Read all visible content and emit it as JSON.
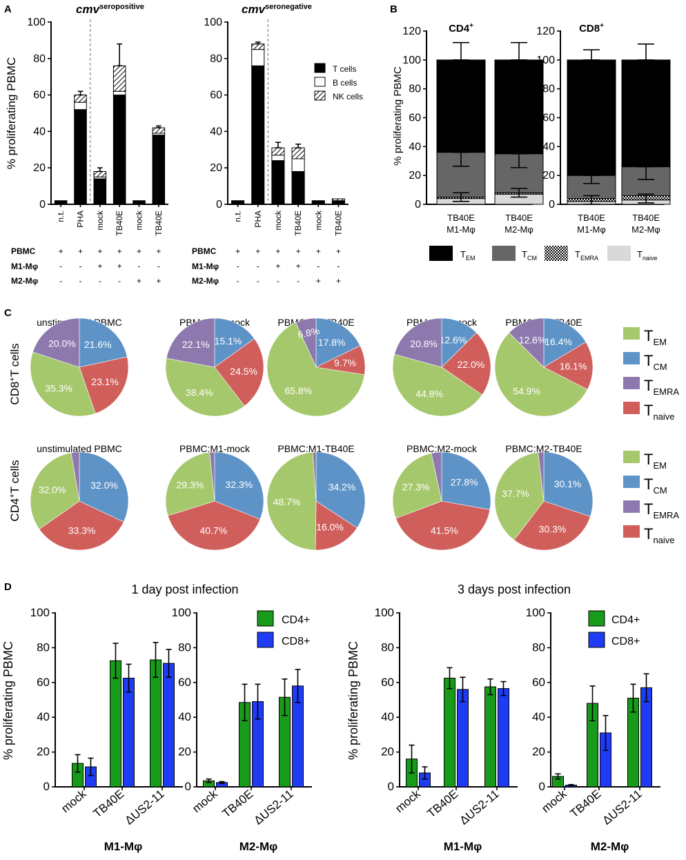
{
  "chart_data": [
    {
      "id": "A_pos",
      "panel": "A",
      "type": "bar",
      "stacked": true,
      "title": "cmv seropositive",
      "ylabel": "% proliferating PBMC",
      "ylim": [
        0,
        100
      ],
      "yticks": [
        0,
        20,
        40,
        60,
        80,
        100
      ],
      "categories": [
        "n.t.",
        "PHA",
        "mock",
        "TB40E",
        "mock",
        "TB40E"
      ],
      "series": [
        {
          "name": "T cells",
          "values": [
            2,
            52,
            14,
            60,
            2,
            38
          ]
        },
        {
          "name": "B cells",
          "values": [
            0,
            4,
            1,
            2,
            0,
            1
          ]
        },
        {
          "name": "NK cells",
          "values": [
            0,
            4,
            3,
            14,
            0,
            3
          ]
        }
      ],
      "errors": [
        0,
        2,
        2,
        12,
        0,
        1
      ]
    },
    {
      "id": "A_neg",
      "panel": "A",
      "type": "bar",
      "stacked": true,
      "title": "cmv seronegative",
      "ylabel": "",
      "ylim": [
        0,
        100
      ],
      "yticks": [
        0,
        20,
        40,
        60,
        80,
        100
      ],
      "categories": [
        "n.t.",
        "PHA",
        "mock",
        "TB40E",
        "mock",
        "TB40E"
      ],
      "series": [
        {
          "name": "T cells",
          "values": [
            2,
            76,
            24,
            18,
            2,
            2
          ]
        },
        {
          "name": "B cells",
          "values": [
            0,
            9,
            3,
            7,
            0,
            0
          ]
        },
        {
          "name": "NK cells",
          "values": [
            0,
            3,
            4,
            6,
            0,
            1
          ]
        }
      ],
      "errors": [
        0,
        1,
        3,
        2,
        0,
        0
      ],
      "legend": [
        "T cells",
        "B cells",
        "NK cells"
      ]
    },
    {
      "id": "B_cd4",
      "panel": "B",
      "type": "bar",
      "stacked": true,
      "title": "CD4+",
      "ylabel": "% proliferating PBMC",
      "ylim": [
        0,
        120
      ],
      "yticks": [
        0,
        20,
        40,
        60,
        80,
        100,
        120
      ],
      "categories": [
        "TB40E M1-Mφ",
        "TB40E M2-Mφ"
      ],
      "series": [
        {
          "name": "T naive",
          "values": [
            4,
            7
          ]
        },
        {
          "name": "T EMRA",
          "values": [
            1,
            1
          ]
        },
        {
          "name": "T CM",
          "values": [
            31,
            27
          ]
        },
        {
          "name": "T EM",
          "values": [
            64,
            65
          ]
        }
      ],
      "errors": [
        12,
        12
      ]
    },
    {
      "id": "B_cd8",
      "panel": "B",
      "type": "bar",
      "stacked": true,
      "title": "CD8+",
      "ylabel": "",
      "ylim": [
        0,
        120
      ],
      "yticks": [
        0,
        20,
        40,
        60,
        80,
        100,
        120
      ],
      "categories": [
        "TB40E M1-Mφ",
        "TB40E M2-Mφ"
      ],
      "series": [
        {
          "name": "T naive",
          "values": [
            2,
            3
          ]
        },
        {
          "name": "T EMRA",
          "values": [
            2,
            3
          ]
        },
        {
          "name": "T CM",
          "values": [
            16,
            20
          ]
        },
        {
          "name": "T EM",
          "values": [
            80,
            74
          ]
        }
      ],
      "errors": [
        7,
        11
      ]
    },
    {
      "id": "C_cd8",
      "panel": "C",
      "type": "pie",
      "row_label": "CD8+T cells",
      "slice_order": [
        "T CM",
        "T naive",
        "T EM",
        "T EMRA"
      ],
      "pies": [
        {
          "title": "unstimulated PBMC",
          "values": [
            21.6,
            23.1,
            35.3,
            20.0
          ],
          "labels": [
            "21.6%",
            "23.1%",
            "35.3%",
            "20.0%"
          ]
        },
        {
          "title": "PBMC:M1-mock",
          "values": [
            15.1,
            24.5,
            38.4,
            22.1
          ],
          "labels": [
            "15.1%",
            "24.5%",
            "38.4%",
            "22.1%"
          ]
        },
        {
          "title": "PBMC:M1-TB40E",
          "values": [
            17.8,
            9.7,
            65.8,
            6.8
          ],
          "labels": [
            "17.8%",
            "9.7%",
            "65.8%",
            "6.8%"
          ]
        },
        {
          "title": "PBMC:M2-mock",
          "values": [
            12.6,
            22.0,
            44.8,
            20.8
          ],
          "labels": [
            "12.6%",
            "22.0%",
            "44.8%",
            "20.8%"
          ]
        },
        {
          "title": "PBMC:M2-TB40E",
          "values": [
            16.4,
            16.1,
            54.9,
            12.6
          ],
          "labels": [
            "16.4%",
            "16.1%",
            "54.9%",
            "12.6%"
          ]
        }
      ]
    },
    {
      "id": "C_cd4",
      "panel": "C",
      "type": "pie",
      "row_label": "CD4+T cells",
      "slice_order": [
        "T CM",
        "T naive",
        "T EM",
        "T EMRA"
      ],
      "pies": [
        {
          "title": "unstimulated PBMC",
          "values": [
            32.0,
            33.3,
            32.0,
            2.7
          ],
          "labels": [
            "32.0%",
            "33.3%",
            "32.0%",
            ""
          ]
        },
        {
          "title": "PBMC:M1-mock",
          "values": [
            32.3,
            40.7,
            29.3,
            1.7
          ],
          "labels": [
            "32.3%",
            "40.7%",
            "29.3%",
            ""
          ]
        },
        {
          "title": "PBMC:M1-TB40E",
          "values": [
            34.2,
            16.0,
            48.7,
            1.1
          ],
          "labels": [
            "34.2%",
            "16.0%",
            "48.7%",
            ""
          ]
        },
        {
          "title": "PBMC:M2-mock",
          "values": [
            27.8,
            41.5,
            27.3,
            3.4
          ],
          "labels": [
            "27.8%",
            "41.5%",
            "27.3%",
            ""
          ]
        },
        {
          "title": "PBMC:M2-TB40E",
          "values": [
            30.1,
            30.3,
            37.7,
            1.9
          ],
          "labels": [
            "30.1%",
            "30.3%",
            "37.7%",
            ""
          ]
        }
      ]
    },
    {
      "id": "D_1d_M1",
      "panel": "D",
      "type": "bar",
      "ylabel": "% proliferating PBMC",
      "xlabel": "M1-Mφ",
      "ylim": [
        0,
        100
      ],
      "yticks": [
        0,
        20,
        40,
        60,
        80,
        100
      ],
      "categories": [
        "mock",
        "TB40E",
        "ΔUS2-11"
      ],
      "series": [
        {
          "name": "CD4+",
          "values": [
            13.5,
            72.5,
            73
          ],
          "errors": [
            5,
            10,
            10
          ]
        },
        {
          "name": "CD8+",
          "values": [
            11.5,
            62.5,
            71
          ],
          "errors": [
            5,
            8,
            8
          ]
        }
      ]
    },
    {
      "id": "D_1d_M2",
      "panel": "D",
      "type": "bar",
      "ylabel": "",
      "xlabel": "M2-Mφ",
      "ylim": [
        0,
        100
      ],
      "yticks": [
        0,
        20,
        40,
        60,
        80,
        100
      ],
      "categories": [
        "mock",
        "TB40E",
        "ΔUS2-11"
      ],
      "series": [
        {
          "name": "CD4+",
          "values": [
            3.5,
            48.5,
            51.5
          ],
          "errors": [
            1,
            10.5,
            10.5
          ]
        },
        {
          "name": "CD8+",
          "values": [
            2.5,
            49,
            58
          ],
          "errors": [
            0.5,
            10,
            9.5
          ]
        }
      ],
      "legend": [
        "CD4+",
        "CD8+"
      ]
    },
    {
      "id": "D_3d_M1",
      "panel": "D",
      "type": "bar",
      "ylabel": "% proliferating PBMC",
      "xlabel": "M1-Mφ",
      "ylim": [
        0,
        100
      ],
      "yticks": [
        0,
        20,
        40,
        60,
        80,
        100
      ],
      "categories": [
        "mock",
        "TB40E",
        "ΔUS2-11"
      ],
      "series": [
        {
          "name": "CD4+",
          "values": [
            16,
            62.5,
            57.5
          ],
          "errors": [
            8,
            6,
            4.5
          ]
        },
        {
          "name": "CD8+",
          "values": [
            8,
            56,
            56.5
          ],
          "errors": [
            3.5,
            7,
            4
          ]
        }
      ]
    },
    {
      "id": "D_3d_M2",
      "panel": "D",
      "type": "bar",
      "ylabel": "",
      "xlabel": "M2-Mφ",
      "ylim": [
        0,
        100
      ],
      "yticks": [
        0,
        20,
        40,
        60,
        80,
        100
      ],
      "categories": [
        "mock",
        "TB40E",
        "ΔUS2-11"
      ],
      "series": [
        {
          "name": "CD4+",
          "values": [
            6,
            48,
            51
          ],
          "errors": [
            1.5,
            10,
            8
          ]
        },
        {
          "name": "CD8+",
          "values": [
            1,
            31,
            57
          ],
          "errors": [
            0.3,
            10,
            8
          ]
        }
      ],
      "legend": [
        "CD4+",
        "CD8+"
      ]
    }
  ],
  "panel_letters": {
    "a": "A",
    "b": "B",
    "c": "C",
    "d": "D"
  },
  "panel_a": {
    "title_pos_main": "cmv",
    "title_pos_sup": "seropositive",
    "title_neg_main": "cmv",
    "title_neg_sup": "seronegative",
    "row_labels": [
      "PBMC",
      "M1-Mφ",
      "M2-Mφ"
    ],
    "rows": [
      [
        "+",
        "+",
        "+",
        "+",
        "+",
        "+"
      ],
      [
        "-",
        "-",
        "+",
        "+",
        "-",
        "-"
      ],
      [
        "-",
        "-",
        "-",
        "-",
        "+",
        "+"
      ]
    ],
    "legend_labels": [
      "T cells",
      "B cells",
      "NK cells"
    ]
  },
  "panel_b": {
    "title_cd4_main": "CD4",
    "title_cd8_main": "CD8",
    "title_sup": "+",
    "legend": [
      {
        "main": "T",
        "sub": "EM"
      },
      {
        "main": "T",
        "sub": "CM"
      },
      {
        "main": "T",
        "sub": "EMRA"
      },
      {
        "main": "T",
        "sub": "naive"
      }
    ]
  },
  "panel_c": {
    "row_cd8_main": "CD8",
    "row_cd4_main": "CD4",
    "row_sup": "+",
    "row_suffix": "T cells",
    "legend": [
      {
        "main": "T",
        "sub": "EM"
      },
      {
        "main": "T",
        "sub": "CM"
      },
      {
        "main": "T",
        "sub": "EMRA"
      },
      {
        "main": "T",
        "sub": "naive"
      }
    ]
  },
  "panel_d": {
    "title_1d": "1 day post infection",
    "title_3d": "3 days post infection",
    "legend": [
      "CD4+",
      "CD8+"
    ]
  },
  "colors": {
    "black": "#000000",
    "cm_gray": "#666666",
    "naive_gray": "#d9d9d9",
    "pie_em": "#a6c86c",
    "pie_cm": "#5e93c7",
    "pie_emra": "#8e79ae",
    "pie_naive": "#d05f5c",
    "cd4_green": "#189a1b",
    "cd8_blue": "#1f3cf5",
    "dashed": "#9a9a9a"
  }
}
